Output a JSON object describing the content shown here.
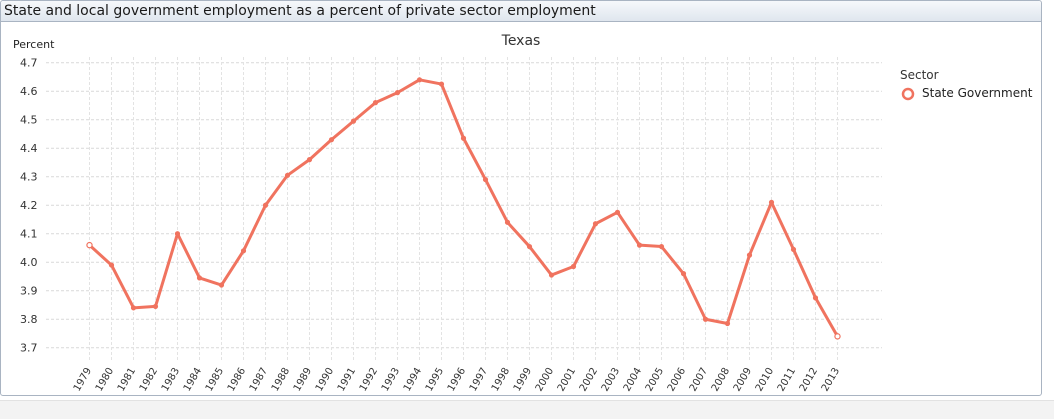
{
  "panel": {
    "title": "State and local government employment as a percent of private sector employment"
  },
  "chart_data": {
    "type": "line",
    "title": "Texas",
    "ylabel": "Percent",
    "xlabel": "",
    "ylim": [
      3.65,
      4.72
    ],
    "yticks": [
      3.7,
      3.8,
      3.9,
      4.0,
      4.1,
      4.2,
      4.3,
      4.4,
      4.5,
      4.6,
      4.7
    ],
    "ytick_labels": [
      "3.7",
      "3.8",
      "3.9",
      "4.0",
      "4.1",
      "4.2",
      "4.3",
      "4.4",
      "4.5",
      "4.6",
      "4.7"
    ],
    "categories": [
      "1979",
      "1980",
      "1981",
      "1982",
      "1983",
      "1984",
      "1985",
      "1986",
      "1987",
      "1988",
      "1989",
      "1990",
      "1991",
      "1992",
      "1993",
      "1994",
      "1995",
      "1996",
      "1997",
      "1998",
      "1999",
      "2000",
      "2001",
      "2002",
      "2003",
      "2004",
      "2005",
      "2006",
      "2007",
      "2008",
      "2009",
      "2010",
      "2011",
      "2012",
      "2013"
    ],
    "grid": true,
    "legend": {
      "title": "Sector",
      "position": "top-right"
    },
    "series": [
      {
        "name": "State Government",
        "color": "#f0735f",
        "values": [
          4.06,
          3.99,
          3.84,
          3.845,
          4.1,
          3.945,
          3.92,
          4.04,
          4.2,
          4.305,
          4.36,
          4.43,
          4.495,
          4.56,
          4.595,
          4.64,
          4.625,
          4.435,
          4.29,
          4.14,
          4.055,
          3.955,
          3.985,
          4.135,
          4.175,
          4.06,
          4.055,
          3.96,
          3.8,
          3.785,
          4.025,
          4.21,
          4.045,
          3.875,
          3.74
        ]
      }
    ]
  }
}
